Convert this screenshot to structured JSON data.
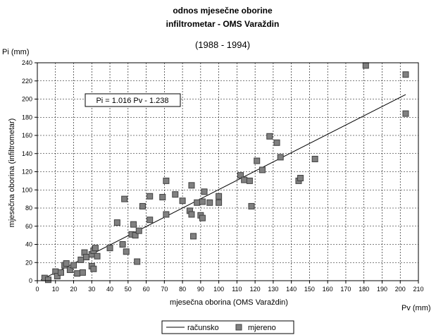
{
  "chart_data": {
    "type": "scatter",
    "title_line1": "odnos mjesečne oborine",
    "title_line2": "infiltrometar - OMS Varaždin",
    "subtitle": "(1988 - 1994)",
    "xlabel": "mjesečna oborina (OMS Varaždin)",
    "ylabel": "mjesečna oborina (infiltrometar)",
    "x_unit_label": "Pv (mm)",
    "y_unit_label": "Pi (mm)",
    "xlim": [
      0,
      210
    ],
    "ylim": [
      0,
      240
    ],
    "xticks": [
      "0",
      "10",
      "20",
      "30",
      "40",
      "50",
      "60",
      "70",
      "80",
      "90",
      "100",
      "110",
      "120",
      "130",
      "140",
      "150",
      "160",
      "170",
      "180",
      "190",
      "200",
      "210"
    ],
    "yticks": [
      "0",
      "20",
      "40",
      "60",
      "80",
      "100",
      "120",
      "140",
      "160",
      "180",
      "200",
      "220",
      "240"
    ],
    "grid": true,
    "equation": "Pi = 1.016 Pv - 1.238",
    "legend": {
      "position": "bottom",
      "line_label": "računsko",
      "marker_label": "mjereno"
    },
    "regression": {
      "name": "računsko",
      "slope": 1.016,
      "intercept": -1.238,
      "x_range": [
        2,
        203
      ]
    },
    "series": [
      {
        "name": "mjereno",
        "points": [
          [
            4,
            3
          ],
          [
            6,
            1
          ],
          [
            10,
            10
          ],
          [
            11,
            5
          ],
          [
            13,
            9
          ],
          [
            15,
            17
          ],
          [
            16,
            19
          ],
          [
            18,
            12
          ],
          [
            20,
            17
          ],
          [
            22,
            8
          ],
          [
            24,
            23
          ],
          [
            25,
            9
          ],
          [
            26,
            31
          ],
          [
            27,
            26
          ],
          [
            30,
            29
          ],
          [
            30,
            16
          ],
          [
            31,
            33
          ],
          [
            31,
            13
          ],
          [
            32,
            36
          ],
          [
            33,
            27
          ],
          [
            40,
            36
          ],
          [
            44,
            64
          ],
          [
            47,
            40
          ],
          [
            48,
            90
          ],
          [
            49,
            32
          ],
          [
            52,
            51
          ],
          [
            53,
            62
          ],
          [
            54,
            50
          ],
          [
            55,
            21
          ],
          [
            56,
            55
          ],
          [
            58,
            82
          ],
          [
            62,
            93
          ],
          [
            62,
            67
          ],
          [
            69,
            92
          ],
          [
            71,
            110
          ],
          [
            71,
            73
          ],
          [
            76,
            95
          ],
          [
            80,
            88
          ],
          [
            84,
            77
          ],
          [
            85,
            73
          ],
          [
            85,
            105
          ],
          [
            86,
            49
          ],
          [
            88,
            86
          ],
          [
            90,
            72
          ],
          [
            91,
            69
          ],
          [
            91,
            87
          ],
          [
            92,
            98
          ],
          [
            95,
            86
          ],
          [
            100,
            93
          ],
          [
            100,
            86
          ],
          [
            112,
            116
          ],
          [
            114,
            111
          ],
          [
            117,
            110
          ],
          [
            118,
            82
          ],
          [
            121,
            132
          ],
          [
            124,
            122
          ],
          [
            128,
            159
          ],
          [
            132,
            152
          ],
          [
            134,
            136
          ],
          [
            144,
            110
          ],
          [
            145,
            113
          ],
          [
            153,
            134
          ],
          [
            181,
            237
          ],
          [
            203,
            227
          ],
          [
            203,
            184
          ]
        ]
      }
    ],
    "colors": {
      "marker_fill": "#808080",
      "marker_stroke": "#404040",
      "grid": "#000000"
    }
  }
}
